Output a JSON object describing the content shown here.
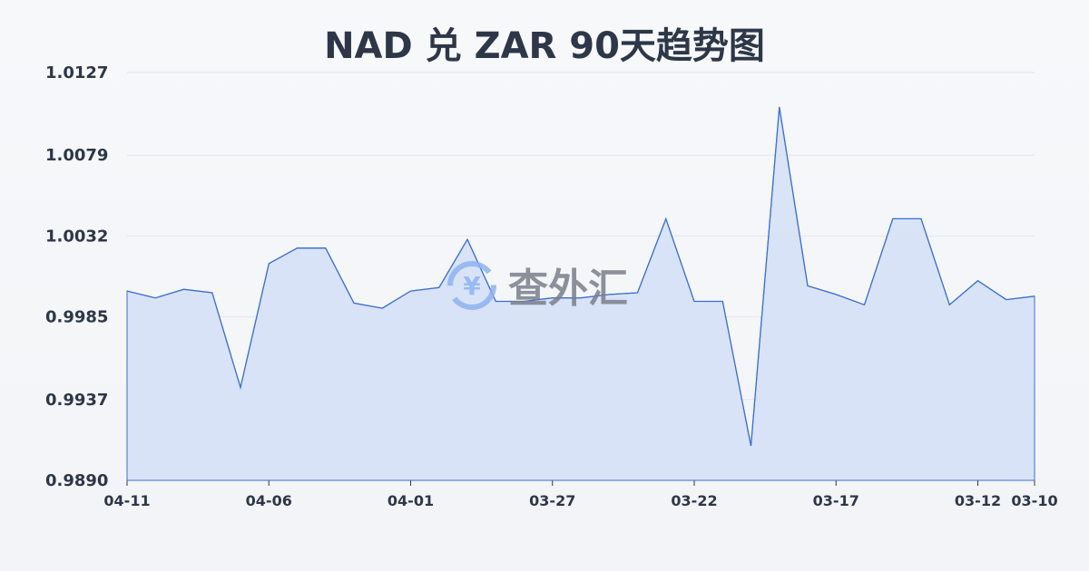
{
  "chart_data": {
    "type": "area",
    "title": "NAD 兑 ZAR 90天趋势图",
    "xlabel": "",
    "ylabel": "",
    "ylim": [
      0.989,
      1.0127
    ],
    "y_ticks": [
      "1.0127",
      "1.0079",
      "1.0032",
      "0.9985",
      "0.9937",
      "0.9890"
    ],
    "x_ticks": [
      "04-11",
      "04-06",
      "04-01",
      "03-27",
      "03-22",
      "03-17",
      "03-12",
      "03-10"
    ],
    "grid": true,
    "x": [
      "04-11",
      "04-10",
      "04-09",
      "04-08",
      "04-07",
      "04-06",
      "04-05",
      "04-04",
      "04-03",
      "04-02",
      "04-01",
      "03-31",
      "03-30",
      "03-29",
      "03-28",
      "03-27",
      "03-26",
      "03-25",
      "03-24",
      "03-23",
      "03-22",
      "03-21",
      "03-20",
      "03-19",
      "03-18",
      "03-17",
      "03-16",
      "03-15",
      "03-14",
      "03-13",
      "03-12",
      "03-11",
      "03-10"
    ],
    "values": [
      1.0,
      0.9996,
      1.0001,
      0.9999,
      0.9944,
      1.0016,
      1.0025,
      1.0025,
      0.9993,
      0.999,
      1.0,
      1.0002,
      1.003,
      0.9994,
      0.9994,
      0.9996,
      0.9996,
      0.9998,
      0.9999,
      1.0042,
      0.9994,
      0.9994,
      0.991,
      1.0107,
      1.0003,
      0.9998,
      0.9992,
      1.0042,
      1.0042,
      0.9992,
      1.0006,
      0.9995,
      0.9997
    ],
    "colors": {
      "line": "#3b6fd4",
      "fill": "#d6e1f6",
      "grid": "#e2e5ea"
    }
  },
  "watermark": {
    "text": "查外汇",
    "icon": "yen-exchange-icon"
  }
}
